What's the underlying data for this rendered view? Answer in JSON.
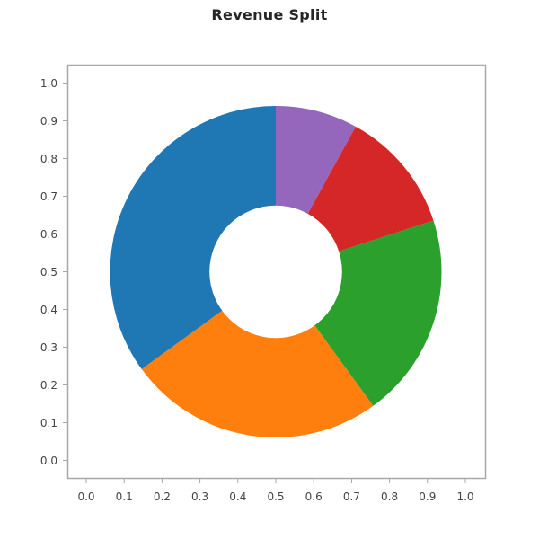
{
  "chart_data": {
    "type": "pie",
    "variant": "donut",
    "title": "Revenue Split",
    "xlabel": "",
    "ylabel": "",
    "slices": [
      {
        "label": "",
        "value": 35,
        "color": "#1f77b4"
      },
      {
        "label": "",
        "value": 25,
        "color": "#ff7f0e"
      },
      {
        "label": "",
        "value": 20,
        "color": "#2ca02c"
      },
      {
        "label": "",
        "value": 12,
        "color": "#d62728"
      },
      {
        "label": "",
        "value": 8,
        "color": "#9467bd"
      }
    ],
    "values": [
      35,
      25,
      20,
      12,
      8
    ],
    "start_angle_deg": 90,
    "counterclock": true,
    "inner_radius_ratio": 0.4,
    "center": [
      0.5,
      0.5
    ],
    "radius": 0.44,
    "xlim": [
      -0.05,
      1.05
    ],
    "ylim": [
      -0.05,
      1.05
    ],
    "xticks": [
      "0.0",
      "0.1",
      "0.2",
      "0.3",
      "0.4",
      "0.5",
      "0.6",
      "0.7",
      "0.8",
      "0.9",
      "1.0"
    ],
    "yticks": [
      "0.0",
      "0.1",
      "0.2",
      "0.3",
      "0.4",
      "0.5",
      "0.6",
      "0.7",
      "0.8",
      "0.9",
      "1.0"
    ],
    "grid": false,
    "legend": null
  },
  "colors": {
    "frame": "#a8a8a8",
    "tick": "#a8a8a8",
    "tick_label": "#444444",
    "title": "#262626",
    "hole": "#ffffff"
  }
}
